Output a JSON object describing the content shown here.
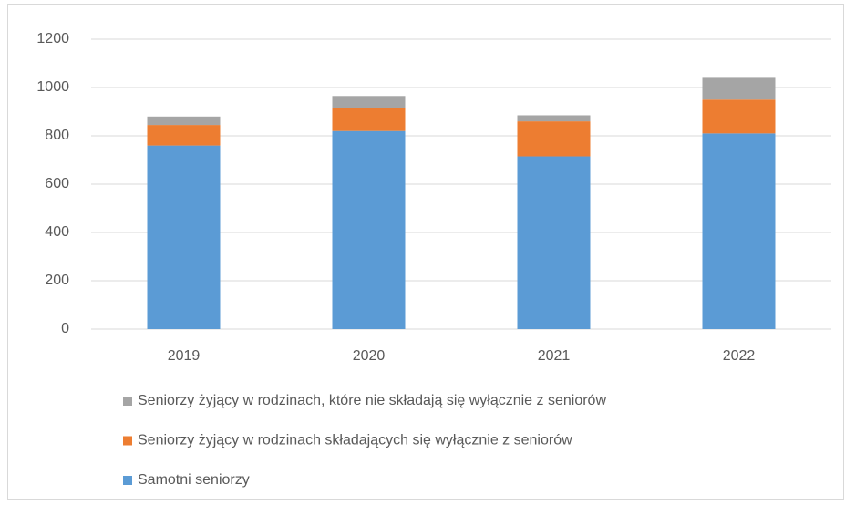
{
  "chart_data": {
    "type": "stacked_bar",
    "categories": [
      "2019",
      "2020",
      "2021",
      "2022"
    ],
    "series": [
      {
        "name": "Samotni seniorzy",
        "color": "#5b9bd5",
        "values": [
          760,
          820,
          715,
          810
        ]
      },
      {
        "name": "Seniorzy żyjący w rodzinach składających się wyłącznie z seniorów",
        "color": "#ed7d31",
        "values": [
          85,
          95,
          145,
          140
        ]
      },
      {
        "name": "Seniorzy żyjący w rodzinach, które nie składają się wyłącznie z seniorów",
        "color": "#a5a5a5",
        "values": [
          35,
          50,
          25,
          90
        ]
      }
    ],
    "ylim": [
      0,
      1200
    ],
    "yticks": [
      0,
      200,
      400,
      600,
      800,
      1000,
      1200
    ],
    "grid": true
  }
}
